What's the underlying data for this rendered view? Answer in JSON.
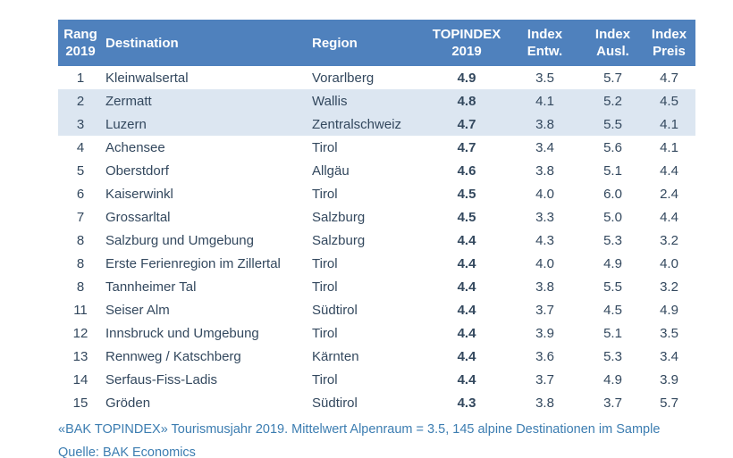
{
  "chart_data": {
    "type": "table",
    "columns": [
      {
        "key": "rang",
        "line1": "Rang",
        "line2": "2019"
      },
      {
        "key": "destination",
        "line1": "Destination",
        "line2": ""
      },
      {
        "key": "region",
        "line1": "Region",
        "line2": ""
      },
      {
        "key": "topindex",
        "line1": "TOPINDEX",
        "line2": "2019"
      },
      {
        "key": "entw",
        "line1": "Index",
        "line2": "Entw."
      },
      {
        "key": "ausl",
        "line1": "Index",
        "line2": "Ausl."
      },
      {
        "key": "preis",
        "line1": "Index",
        "line2": "Preis"
      }
    ],
    "rows": [
      {
        "rang": "1",
        "destination": "Kleinwalsertal",
        "region": "Vorarlberg",
        "topindex": "4.9",
        "entw": "3.5",
        "ausl": "5.7",
        "preis": "4.7",
        "highlight": false
      },
      {
        "rang": "2",
        "destination": "Zermatt",
        "region": "Wallis",
        "topindex": "4.8",
        "entw": "4.1",
        "ausl": "5.2",
        "preis": "4.5",
        "highlight": true
      },
      {
        "rang": "3",
        "destination": "Luzern",
        "region": "Zentralschweiz",
        "topindex": "4.7",
        "entw": "3.8",
        "ausl": "5.5",
        "preis": "4.1",
        "highlight": true
      },
      {
        "rang": "4",
        "destination": "Achensee",
        "region": "Tirol",
        "topindex": "4.7",
        "entw": "3.4",
        "ausl": "5.6",
        "preis": "4.1",
        "highlight": false
      },
      {
        "rang": "5",
        "destination": "Oberstdorf",
        "region": "Allgäu",
        "topindex": "4.6",
        "entw": "3.8",
        "ausl": "5.1",
        "preis": "4.4",
        "highlight": false
      },
      {
        "rang": "6",
        "destination": "Kaiserwinkl",
        "region": "Tirol",
        "topindex": "4.5",
        "entw": "4.0",
        "ausl": "6.0",
        "preis": "2.4",
        "highlight": false
      },
      {
        "rang": "7",
        "destination": "Grossarltal",
        "region": "Salzburg",
        "topindex": "4.5",
        "entw": "3.3",
        "ausl": "5.0",
        "preis": "4.4",
        "highlight": false
      },
      {
        "rang": "8",
        "destination": "Salzburg und Umgebung",
        "region": "Salzburg",
        "topindex": "4.4",
        "entw": "4.3",
        "ausl": "5.3",
        "preis": "3.2",
        "highlight": false
      },
      {
        "rang": "8",
        "destination": "Erste Ferienregion im Zillertal",
        "region": "Tirol",
        "topindex": "4.4",
        "entw": "4.0",
        "ausl": "4.9",
        "preis": "4.0",
        "highlight": false
      },
      {
        "rang": "8",
        "destination": "Tannheimer Tal",
        "region": "Tirol",
        "topindex": "4.4",
        "entw": "3.8",
        "ausl": "5.5",
        "preis": "3.2",
        "highlight": false
      },
      {
        "rang": "11",
        "destination": "Seiser Alm",
        "region": "Südtirol",
        "topindex": "4.4",
        "entw": "3.7",
        "ausl": "4.5",
        "preis": "4.9",
        "highlight": false
      },
      {
        "rang": "12",
        "destination": "Innsbruck und Umgebung",
        "region": "Tirol",
        "topindex": "4.4",
        "entw": "3.9",
        "ausl": "5.1",
        "preis": "3.5",
        "highlight": false
      },
      {
        "rang": "13",
        "destination": "Rennweg / Katschberg",
        "region": "Kärnten",
        "topindex": "4.4",
        "entw": "3.6",
        "ausl": "5.3",
        "preis": "3.4",
        "highlight": false
      },
      {
        "rang": "14",
        "destination": "Serfaus-Fiss-Ladis",
        "region": "Tirol",
        "topindex": "4.4",
        "entw": "3.7",
        "ausl": "4.9",
        "preis": "3.9",
        "highlight": false
      },
      {
        "rang": "15",
        "destination": "Gröden",
        "region": "Südtirol",
        "topindex": "4.3",
        "entw": "3.8",
        "ausl": "3.7",
        "preis": "5.7",
        "highlight": false
      }
    ],
    "title": "",
    "footnote": "«BAK TOPINDEX» Tourismusjahr 2019. Mittelwert Alpenraum = 3.5, 145 alpine Destinationen im Sample",
    "source": "Quelle: BAK Economics",
    "layout_hints": {
      "grid": false,
      "legend": "none"
    }
  },
  "colors": {
    "header_bg": "#4F81BD",
    "header_text": "#FFFFFF",
    "highlight_row_bg": "#DCE6F1",
    "body_text": "#33485E",
    "footnote_text": "#3C7DB1",
    "page_bg": "#FFFFFF"
  }
}
